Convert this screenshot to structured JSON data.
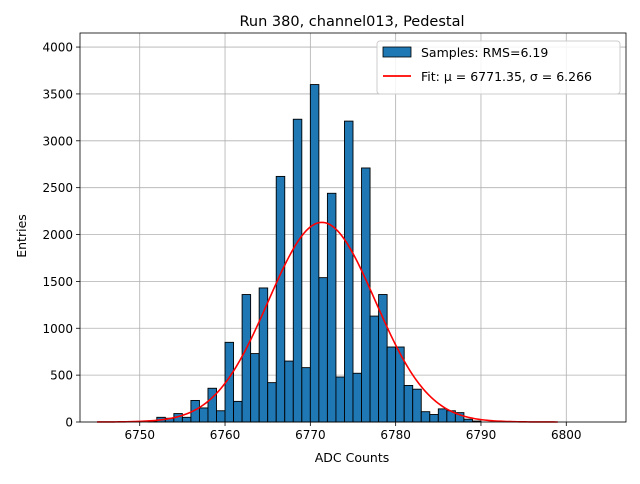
{
  "chart_data": {
    "type": "bar",
    "title": "Run 380, channel013, Pedestal",
    "xlabel": "ADC Counts",
    "ylabel": "Entries",
    "xlim": [
      6743,
      6807
    ],
    "ylim": [
      0,
      4150
    ],
    "xticks": [
      6750,
      6760,
      6770,
      6780,
      6790,
      6800
    ],
    "yticks": [
      0,
      500,
      1000,
      1500,
      2000,
      2500,
      3000,
      3500,
      4000
    ],
    "grid": true,
    "legend_position": "top-right",
    "bin_width": 1,
    "bin_starts": [
      6751,
      6752,
      6753,
      6754,
      6755,
      6756,
      6757,
      6758,
      6759,
      6760,
      6761,
      6762,
      6763,
      6764,
      6765,
      6766,
      6767,
      6768,
      6769,
      6770,
      6771,
      6772,
      6773,
      6774,
      6775,
      6776,
      6777,
      6778,
      6779,
      6780,
      6781,
      6782,
      6783,
      6784,
      6785,
      6786,
      6787,
      6788,
      6789
    ],
    "series": [
      {
        "name": "Samples: RMS=6.19",
        "kind": "histogram",
        "color": "#1f77b4",
        "edgecolor": "#000000",
        "values": [
          10,
          50,
          40,
          90,
          50,
          230,
          150,
          360,
          120,
          850,
          220,
          1360,
          730,
          1430,
          420,
          2620,
          650,
          3230,
          580,
          3600,
          1540,
          2440,
          480,
          3210,
          520,
          2710,
          1130,
          1360,
          800,
          800,
          390,
          350,
          110,
          80,
          140,
          120,
          100,
          30,
          10
        ]
      },
      {
        "name": "Fit: μ = 6771.35, σ = 6.266",
        "kind": "gaussian-fit",
        "color": "#ff0000",
        "mu": 6771.35,
        "sigma": 6.266,
        "amplitude": 2130,
        "x_range": [
          6745,
          6799
        ]
      }
    ]
  }
}
